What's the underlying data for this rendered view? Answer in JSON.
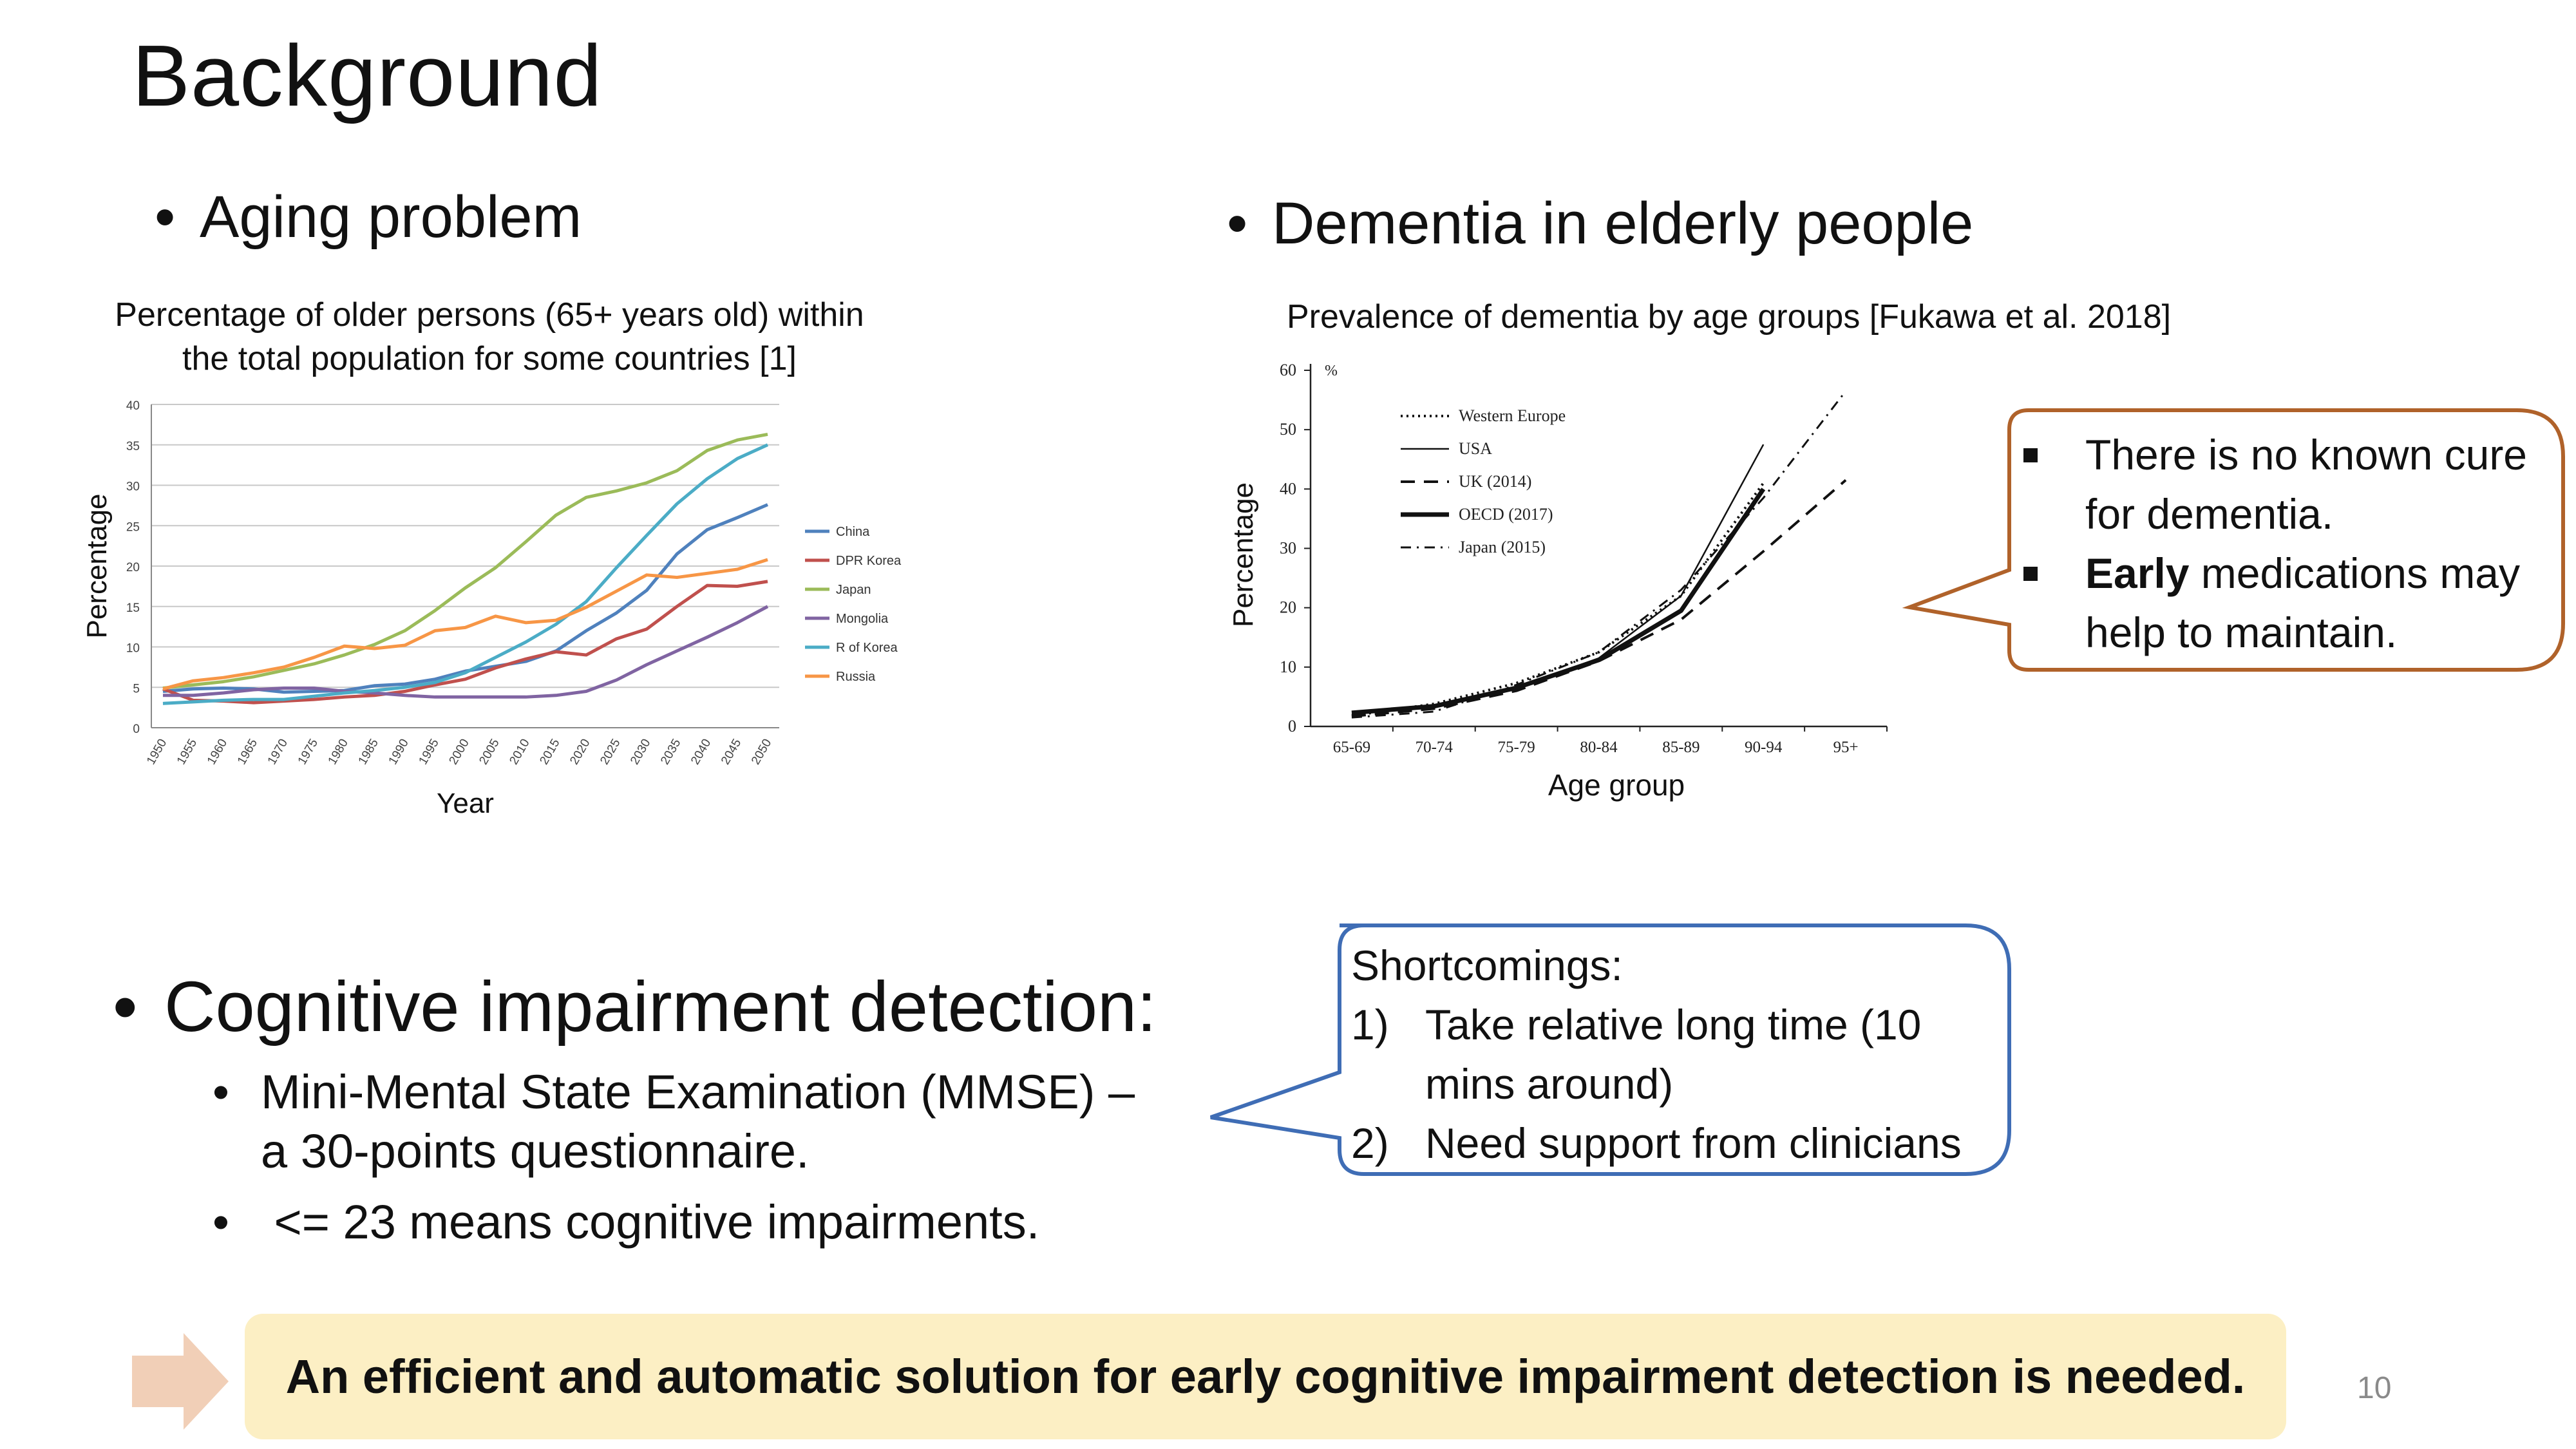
{
  "slide": {
    "title": "Background",
    "page_number": "10"
  },
  "left_section": {
    "bullet": "Aging problem",
    "caption_line1": "Percentage of older persons (65+ years old) within",
    "caption_line2": "the total population for some countries [1]"
  },
  "right_section": {
    "bullet": "Dementia in elderly people",
    "caption": "Prevalence of dementia by age groups [Fukawa et al. 2018]"
  },
  "dementia_callout": {
    "line1": "There is no known cure",
    "line2": "for dementia.",
    "line3_bold": "Early",
    "line3_rest": " medications may",
    "line4": "help to maintain."
  },
  "cognitive_section": {
    "bullet": "Cognitive impairment detection:",
    "sub1_line1": "Mini-Mental State  Examination (MMSE) –",
    "sub1_line2": "a 30-points questionnaire.",
    "sub2": " <= 23 means cognitive impairments."
  },
  "shortcomings_callout": {
    "heading": "Shortcomings:",
    "item1_num": "1)",
    "item1_line1": "Take relative long time (10",
    "item1_line2": "mins around)",
    "item2_num": "2)",
    "item2": "Need support from clinicians"
  },
  "conclusion": {
    "text": "An efficient and automatic solution for early cognitive impairment detection is needed."
  },
  "colors": {
    "callout_orange": "#b0622a",
    "callout_blue": "#3f6db5",
    "banner_fill": "#fcefc4",
    "arrow_fill": "#f1cfb7"
  },
  "chart_data": [
    {
      "type": "line",
      "xlabel": "Year",
      "ylabel": "Percentage",
      "x": [
        1950,
        1955,
        1960,
        1965,
        1970,
        1975,
        1980,
        1985,
        1990,
        1995,
        2000,
        2005,
        2010,
        2015,
        2020,
        2025,
        2030,
        2035,
        2040,
        2045,
        2050
      ],
      "ylim": [
        0,
        40
      ],
      "yticks": [
        0,
        5,
        10,
        15,
        20,
        25,
        30,
        35,
        40
      ],
      "grid": true,
      "legend": "right",
      "series": [
        {
          "name": "China",
          "color": "#4f81bd",
          "values": [
            4.5,
            4.8,
            4.9,
            4.8,
            4.4,
            4.5,
            4.6,
            5.2,
            5.4,
            6.0,
            7.0,
            7.6,
            8.2,
            9.5,
            12.0,
            14.2,
            17.0,
            21.5,
            24.5,
            26.0,
            27.6
          ]
        },
        {
          "name": "DPR Korea",
          "color": "#c0504d",
          "values": [
            4.8,
            3.4,
            3.3,
            3.1,
            3.3,
            3.5,
            3.8,
            4.0,
            4.5,
            5.3,
            6.0,
            7.4,
            8.5,
            9.4,
            9.0,
            11.0,
            12.2,
            15.0,
            17.6,
            17.5,
            18.1
          ]
        },
        {
          "name": "Japan",
          "color": "#9bbb59",
          "values": [
            4.9,
            5.3,
            5.7,
            6.3,
            7.1,
            7.9,
            9.0,
            10.3,
            12.0,
            14.5,
            17.3,
            19.8,
            23.0,
            26.3,
            28.5,
            29.3,
            30.3,
            31.8,
            34.3,
            35.6,
            36.3
          ]
        },
        {
          "name": "Mongolia",
          "color": "#8064a2",
          "values": [
            4.0,
            4.0,
            4.3,
            4.7,
            4.9,
            4.9,
            4.5,
            4.3,
            4.0,
            3.8,
            3.8,
            3.8,
            3.8,
            4.0,
            4.5,
            5.9,
            7.8,
            9.5,
            11.2,
            13.0,
            15.0
          ]
        },
        {
          "name": "R of Korea",
          "color": "#4bacc6",
          "values": [
            3.0,
            3.2,
            3.4,
            3.5,
            3.5,
            3.9,
            4.3,
            4.6,
            5.0,
            5.6,
            6.8,
            8.7,
            10.6,
            12.8,
            15.6,
            19.8,
            23.8,
            27.7,
            30.8,
            33.3,
            35.0
          ]
        },
        {
          "name": "Russia",
          "color": "#f79646",
          "values": [
            4.8,
            5.8,
            6.2,
            6.8,
            7.5,
            8.7,
            10.1,
            9.8,
            10.2,
            12.0,
            12.4,
            13.8,
            13.0,
            13.3,
            14.9,
            16.9,
            18.9,
            18.6,
            19.1,
            19.6,
            20.8
          ]
        }
      ]
    },
    {
      "type": "line",
      "xlabel": "Age group",
      "ylabel": "Percentage",
      "yunit": "%",
      "categories": [
        "65-69",
        "70-74",
        "75-79",
        "80-84",
        "85-89",
        "90-94",
        "95+"
      ],
      "ylim": [
        0,
        60
      ],
      "yticks": [
        0,
        10,
        20,
        30,
        40,
        50,
        60
      ],
      "grid": false,
      "legend": "top-left",
      "series": [
        {
          "name": "Western Europe",
          "dash": "dotted",
          "values": [
            1.8,
            3.8,
            7.3,
            12.5,
            22.0,
            41.0,
            null
          ]
        },
        {
          "name": "USA",
          "dash": "thin",
          "values": [
            2.0,
            3.5,
            6.5,
            11.5,
            22.0,
            47.5,
            null
          ]
        },
        {
          "name": "UK (2014)",
          "dash": "dashed",
          "values": [
            1.7,
            3.0,
            6.0,
            11.0,
            18.0,
            29.5,
            41.5
          ]
        },
        {
          "name": "OECD (2017)",
          "dash": "thick",
          "values": [
            2.3,
            3.4,
            6.5,
            11.2,
            19.5,
            40.0,
            null
          ]
        },
        {
          "name": "Japan (2015)",
          "dash": "dashdot",
          "values": [
            1.5,
            2.5,
            7.0,
            12.5,
            23.0,
            38.5,
            56.5
          ]
        }
      ]
    }
  ]
}
